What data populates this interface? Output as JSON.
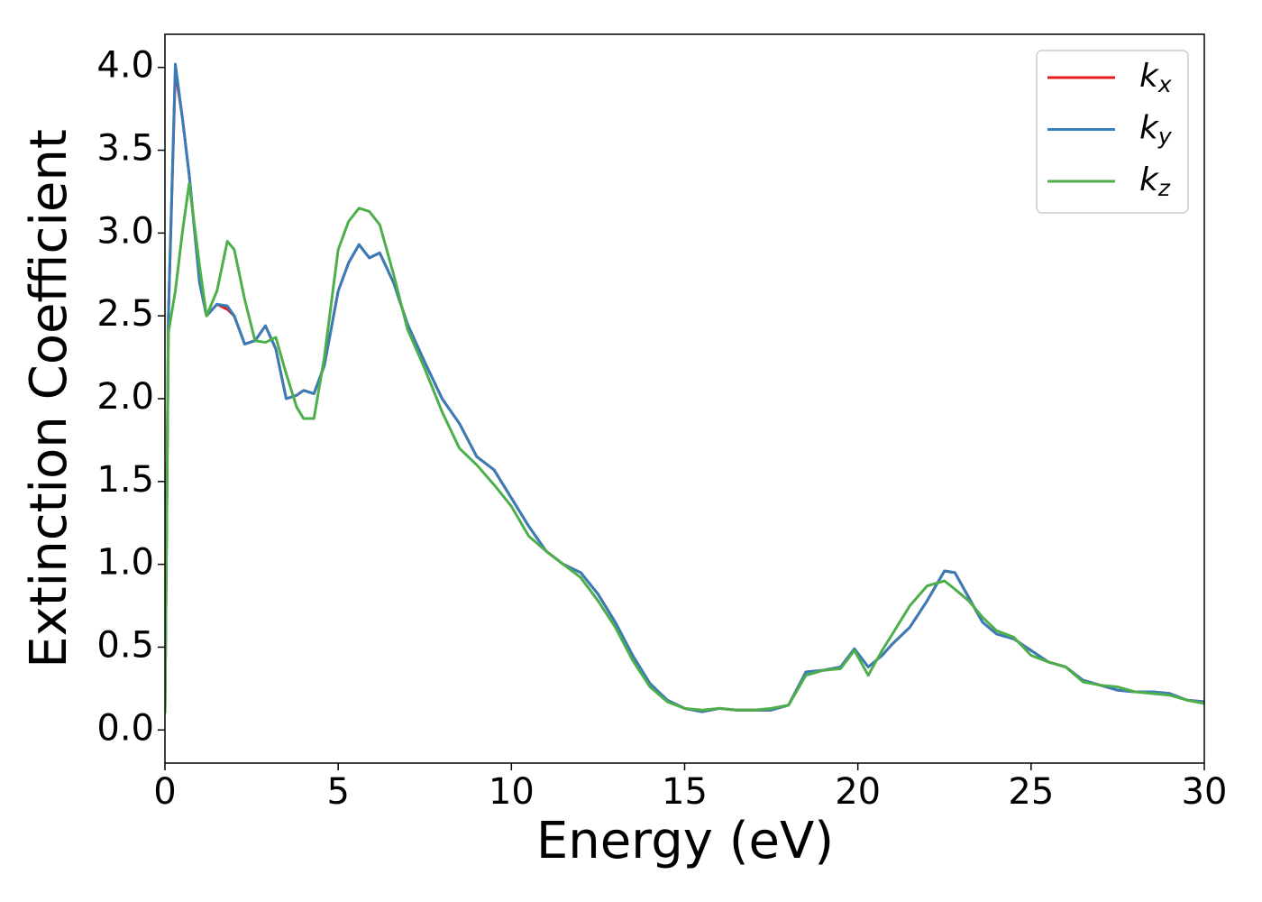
{
  "chart_data": {
    "type": "line",
    "xlabel": "Energy (eV)",
    "ylabel": "Extinction Coefficient",
    "x": [
      0,
      0.1,
      0.3,
      0.5,
      0.7,
      1.0,
      1.2,
      1.5,
      1.8,
      2.0,
      2.3,
      2.6,
      2.9,
      3.2,
      3.5,
      3.8,
      4.0,
      4.3,
      4.6,
      5.0,
      5.3,
      5.6,
      5.9,
      6.2,
      6.6,
      7.0,
      7.5,
      8.0,
      8.5,
      9.0,
      9.5,
      10,
      10.5,
      11,
      11.5,
      12,
      12.5,
      13,
      13.5,
      14,
      14.5,
      15,
      15.5,
      16,
      16.5,
      17,
      17.5,
      18,
      18.5,
      19,
      19.5,
      19.9,
      20.3,
      20.7,
      21,
      21.5,
      22,
      22.5,
      22.8,
      23.2,
      23.6,
      24,
      24.5,
      25,
      25.5,
      26,
      26.5,
      27,
      27.5,
      28,
      28.5,
      29,
      29.5,
      30
    ],
    "series": [
      {
        "name": "k_x",
        "color": "#e41a1c",
        "values": [
          0.1,
          2.5,
          3.98,
          3.7,
          3.35,
          2.7,
          2.5,
          2.57,
          2.54,
          2.5,
          2.33,
          2.35,
          2.44,
          2.3,
          2.0,
          2.02,
          2.05,
          2.03,
          2.2,
          2.65,
          2.82,
          2.93,
          2.85,
          2.88,
          2.7,
          2.45,
          2.22,
          2.0,
          1.85,
          1.65,
          1.57,
          1.4,
          1.23,
          1.08,
          1.0,
          0.95,
          0.82,
          0.65,
          0.45,
          0.28,
          0.18,
          0.13,
          0.11,
          0.13,
          0.12,
          0.12,
          0.12,
          0.15,
          0.35,
          0.36,
          0.38,
          0.49,
          0.38,
          0.45,
          0.52,
          0.62,
          0.78,
          0.96,
          0.95,
          0.8,
          0.65,
          0.58,
          0.55,
          0.48,
          0.41,
          0.38,
          0.3,
          0.27,
          0.24,
          0.23,
          0.23,
          0.22,
          0.18,
          0.17
        ]
      },
      {
        "name": "k_y",
        "color": "#377eb8",
        "values": [
          0.1,
          2.5,
          4.02,
          3.7,
          3.35,
          2.7,
          2.5,
          2.57,
          2.56,
          2.5,
          2.33,
          2.35,
          2.44,
          2.3,
          2.0,
          2.02,
          2.05,
          2.03,
          2.2,
          2.65,
          2.82,
          2.93,
          2.85,
          2.88,
          2.7,
          2.45,
          2.22,
          2.0,
          1.85,
          1.65,
          1.57,
          1.4,
          1.23,
          1.08,
          1.0,
          0.95,
          0.82,
          0.65,
          0.45,
          0.28,
          0.18,
          0.13,
          0.11,
          0.13,
          0.12,
          0.12,
          0.12,
          0.15,
          0.35,
          0.36,
          0.38,
          0.49,
          0.38,
          0.45,
          0.52,
          0.62,
          0.78,
          0.96,
          0.95,
          0.8,
          0.65,
          0.58,
          0.55,
          0.48,
          0.41,
          0.38,
          0.3,
          0.27,
          0.24,
          0.23,
          0.23,
          0.22,
          0.18,
          0.17
        ]
      },
      {
        "name": "k_z",
        "color": "#4daf4a",
        "values": [
          0.1,
          2.4,
          2.65,
          3.0,
          3.3,
          2.8,
          2.5,
          2.65,
          2.95,
          2.9,
          2.6,
          2.35,
          2.34,
          2.37,
          2.15,
          1.95,
          1.88,
          1.88,
          2.25,
          2.9,
          3.07,
          3.15,
          3.13,
          3.05,
          2.75,
          2.42,
          2.18,
          1.92,
          1.7,
          1.6,
          1.48,
          1.35,
          1.17,
          1.08,
          1.0,
          0.92,
          0.78,
          0.62,
          0.42,
          0.26,
          0.17,
          0.13,
          0.12,
          0.13,
          0.12,
          0.12,
          0.13,
          0.15,
          0.33,
          0.36,
          0.37,
          0.48,
          0.33,
          0.48,
          0.58,
          0.75,
          0.87,
          0.9,
          0.85,
          0.78,
          0.68,
          0.6,
          0.56,
          0.45,
          0.41,
          0.38,
          0.29,
          0.27,
          0.26,
          0.23,
          0.22,
          0.21,
          0.18,
          0.16
        ]
      }
    ],
    "xlim": [
      0,
      30
    ],
    "xticks": [
      0,
      5,
      10,
      15,
      20,
      25,
      30
    ],
    "ylim": [
      -0.2,
      4.2
    ],
    "yticks": [
      {
        "value": 0,
        "label": "0.0"
      },
      0.5,
      {
        "value": 1,
        "label": "1.0"
      },
      1.5,
      {
        "value": 2,
        "label": "2.0"
      },
      2.5,
      {
        "value": 3,
        "label": "3.0"
      },
      3.5,
      {
        "value": 4,
        "label": "4.0"
      }
    ],
    "grid": false,
    "legend": "upper right"
  }
}
